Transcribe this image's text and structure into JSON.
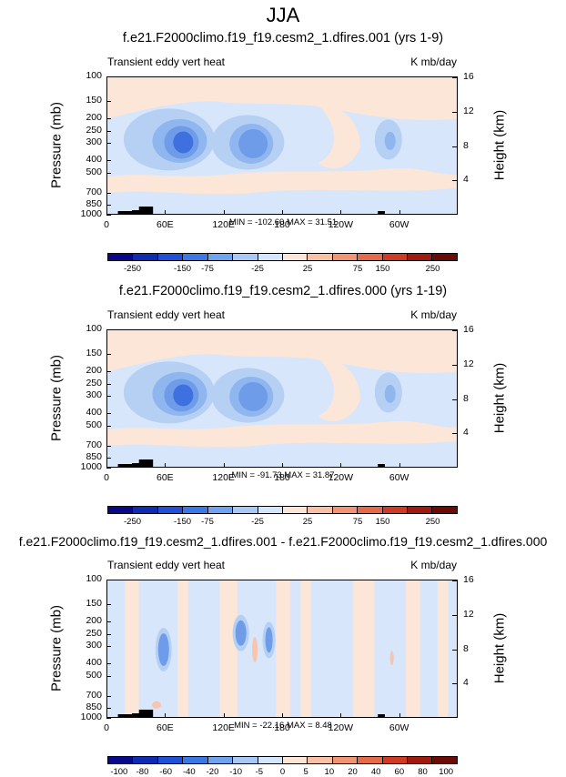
{
  "title": "JJA",
  "common": {
    "subtitle_left": "Transient eddy vert heat",
    "subtitle_right": "K mb/day",
    "ylabel_left": "Pressure (mb)",
    "ylabel_right": "Height (km)",
    "pressure_ticks": [
      "100",
      "150",
      "200",
      "250",
      "300",
      "400",
      "500",
      "700",
      "850",
      "1000"
    ],
    "height_ticks": [
      "16",
      "12",
      "8",
      "4"
    ],
    "x_ticks": [
      "0",
      "60E",
      "120E",
      "180",
      "120W",
      "60W"
    ]
  },
  "colorbar_colors": [
    "#08088c",
    "#0f2bb4",
    "#1f50d7",
    "#3a78e6",
    "#6fa2ef",
    "#a8c8f5",
    "#d4e6fb",
    "#fbe5d6",
    "#f8c1a5",
    "#f19474",
    "#e56a4a",
    "#cf3a24",
    "#a01a0e",
    "#6e0a06"
  ],
  "panels": [
    {
      "title": "f.e21.F2000climo.f19_f19.cesm2_1.dfires.001 (yrs 1-9)",
      "minmax": "MIN = -102.60  MAX =  31.51",
      "colorbar_labels": [
        "-250",
        "-150",
        "-75",
        "-25",
        "25",
        "75",
        "150",
        "250"
      ]
    },
    {
      "title": "f.e21.F2000climo.f19_f19.cesm2_1.dfires.000 (yrs 1-19)",
      "minmax": "MIN = -91.73  MAX =  31.87",
      "colorbar_labels": [
        "-250",
        "-150",
        "-75",
        "-25",
        "25",
        "75",
        "150",
        "250"
      ]
    },
    {
      "title": "f.e21.F2000climo.f19_f19.cesm2_1.dfires.001 - f.e21.F2000climo.f19_f19.cesm2_1.dfires.000",
      "minmax": "MIN = -22.16  MAX =   8.48",
      "colorbar_labels": [
        "-100",
        "-80",
        "-60",
        "-40",
        "-20",
        "-10",
        "-5",
        "0",
        "5",
        "10",
        "20",
        "40",
        "60",
        "80",
        "100"
      ]
    }
  ],
  "chart_data": [
    {
      "type": "heatmap",
      "title": "f.e21.F2000climo.f19_f19.cesm2_1.dfires.001 (yrs 1-9)",
      "subtitle_left": "Transient eddy vert heat",
      "units": "K mb/day",
      "xlabel": "",
      "ylabel": "Pressure (mb)",
      "ylabel_right": "Height (km)",
      "x_ticks": [
        "0",
        "60E",
        "120E",
        "180",
        "120W",
        "60W"
      ],
      "y_ticks": [
        100,
        150,
        200,
        250,
        300,
        400,
        500,
        700,
        850,
        1000
      ],
      "y_scale": "log",
      "ylim": [
        1000,
        100
      ],
      "min": -102.6,
      "max": 31.51,
      "levels": [
        -250,
        -150,
        -75,
        -25,
        25,
        75,
        150,
        250
      ]
    },
    {
      "type": "heatmap",
      "title": "f.e21.F2000climo.f19_f19.cesm2_1.dfires.000 (yrs 1-19)",
      "subtitle_left": "Transient eddy vert heat",
      "units": "K mb/day",
      "xlabel": "",
      "ylabel": "Pressure (mb)",
      "ylabel_right": "Height (km)",
      "x_ticks": [
        "0",
        "60E",
        "120E",
        "180",
        "120W",
        "60W"
      ],
      "y_ticks": [
        100,
        150,
        200,
        250,
        300,
        400,
        500,
        700,
        850,
        1000
      ],
      "y_scale": "log",
      "ylim": [
        1000,
        100
      ],
      "min": -91.73,
      "max": 31.87,
      "levels": [
        -250,
        -150,
        -75,
        -25,
        25,
        75,
        150,
        250
      ]
    },
    {
      "type": "heatmap",
      "title": "f.e21.F2000climo.f19_f19.cesm2_1.dfires.001 - f.e21.F2000climo.f19_f19.cesm2_1.dfires.000",
      "subtitle_left": "Transient eddy vert heat",
      "units": "K mb/day",
      "xlabel": "",
      "ylabel": "Pressure (mb)",
      "ylabel_right": "Height (km)",
      "x_ticks": [
        "0",
        "60E",
        "120E",
        "180",
        "120W",
        "60W"
      ],
      "y_ticks": [
        100,
        150,
        200,
        250,
        300,
        400,
        500,
        700,
        850,
        1000
      ],
      "y_scale": "log",
      "ylim": [
        1000,
        100
      ],
      "min": -22.16,
      "max": 8.48,
      "levels": [
        -100,
        -80,
        -60,
        -40,
        -20,
        -10,
        -5,
        0,
        5,
        10,
        20,
        40,
        60,
        80,
        100
      ]
    }
  ]
}
